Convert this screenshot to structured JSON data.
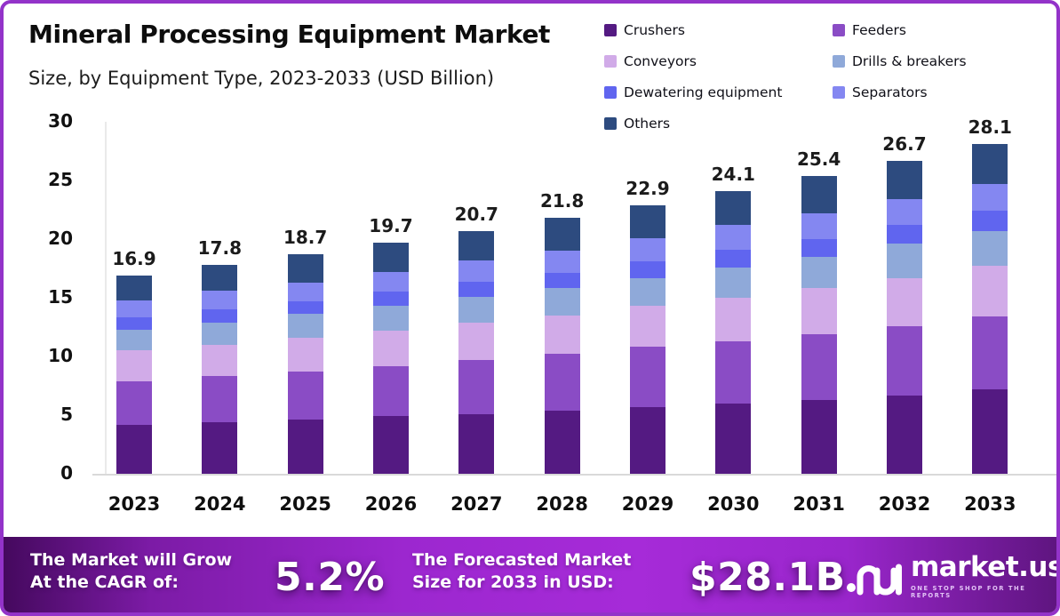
{
  "chart_data": {
    "type": "bar",
    "stacked": true,
    "title": "Mineral Processing Equipment Market",
    "subtitle": "Size, by Equipment Type, 2023-2033 (USD Billion)",
    "unit": "USD Billion",
    "categories": [
      "2023",
      "2024",
      "2025",
      "2026",
      "2027",
      "2028",
      "2029",
      "2030",
      "2031",
      "2032",
      "2033"
    ],
    "series": [
      {
        "name": "Crushers",
        "color": "#541a82",
        "values": [
          4.2,
          4.4,
          4.6,
          4.9,
          5.1,
          5.4,
          5.7,
          6.0,
          6.3,
          6.7,
          7.2
        ]
      },
      {
        "name": "Feeders",
        "color": "#8a4cc5",
        "values": [
          3.7,
          3.9,
          4.1,
          4.3,
          4.6,
          4.8,
          5.1,
          5.3,
          5.6,
          5.9,
          6.2
        ]
      },
      {
        "name": "Conveyors",
        "color": "#d1abe8",
        "values": [
          2.6,
          2.7,
          2.9,
          3.0,
          3.2,
          3.3,
          3.5,
          3.7,
          3.9,
          4.1,
          4.3
        ]
      },
      {
        "name": "Drills & breakers",
        "color": "#8fa9d9",
        "values": [
          1.8,
          1.9,
          2.0,
          2.1,
          2.2,
          2.3,
          2.4,
          2.6,
          2.7,
          2.9,
          3.0
        ]
      },
      {
        "name": "Dewatering equipment",
        "color": "#6065ef",
        "values": [
          1.0,
          1.1,
          1.1,
          1.2,
          1.3,
          1.3,
          1.4,
          1.5,
          1.5,
          1.6,
          1.7
        ]
      },
      {
        "name": "Separators",
        "color": "#8487f1",
        "values": [
          1.5,
          1.6,
          1.6,
          1.7,
          1.8,
          1.9,
          2.0,
          2.1,
          2.2,
          2.2,
          2.3
        ]
      },
      {
        "name": "Others",
        "color": "#2d4b7f",
        "values": [
          2.1,
          2.2,
          2.4,
          2.5,
          2.5,
          2.8,
          2.8,
          2.9,
          3.2,
          3.3,
          3.4
        ]
      }
    ],
    "totals": [
      "16.9",
      "17.8",
      "18.7",
      "19.7",
      "20.7",
      "21.8",
      "22.9",
      "24.1",
      "25.4",
      "26.7",
      "28.1"
    ],
    "ylim": [
      0,
      30
    ],
    "yticks": [
      0,
      5,
      10,
      15,
      20,
      25,
      30
    ],
    "grid": false,
    "legend_position": "top-right"
  },
  "banner": {
    "cagr_label": [
      "The Market will Grow",
      "At the CAGR of:"
    ],
    "cagr_value": "5.2%",
    "forecast_label": [
      "The Forecasted Market",
      "Size for 2033 in USD:"
    ],
    "forecast_value": "$28.1B",
    "logo": {
      "name": "market.us",
      "tagline": "ONE STOP SHOP FOR THE REPORTS"
    }
  },
  "colors": {
    "frame": "#9333c9",
    "banner_gradient": [
      "#45095e",
      "#a62bd8",
      "#5f1580"
    ],
    "banner_strip": "#2e0a3f",
    "axis_line": "#d9d9d9"
  }
}
